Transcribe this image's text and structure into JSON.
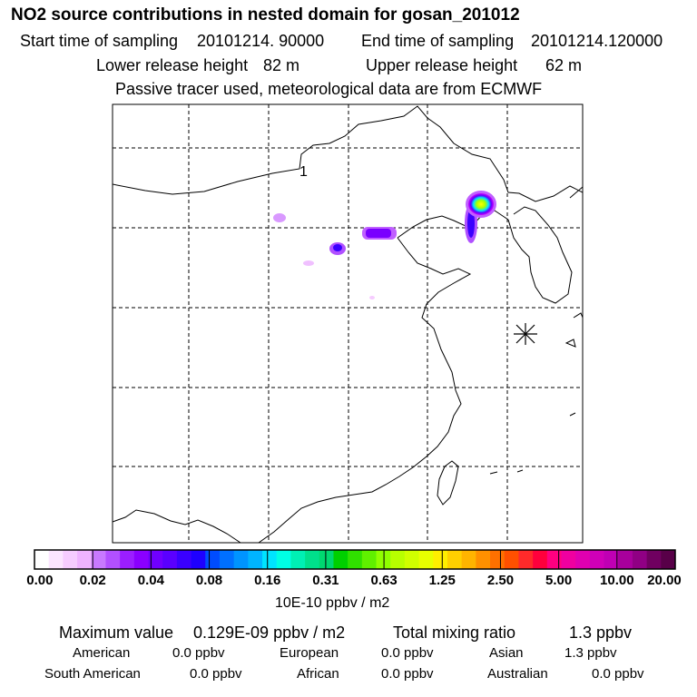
{
  "header": {
    "title": "NO2 source contributions in nested domain for gosan_201012",
    "start_label": "Start time of sampling",
    "start_value": "20101214. 90000",
    "end_label": "End time of sampling",
    "end_value": "20101214.120000",
    "lower_label": "Lower release height",
    "lower_value": "82 m",
    "upper_label": "Upper release height",
    "upper_value": "62 m",
    "note": "Passive tracer used, meteorological data are from ECMWF"
  },
  "map": {
    "marker_label": "1",
    "station_symbol": "asterisk"
  },
  "colorbar": {
    "ticks": [
      "0.00",
      "0.02",
      "0.04",
      "0.08",
      "0.16",
      "0.31",
      "0.63",
      "1.25",
      "2.50",
      "5.00",
      "10.00",
      "20.00"
    ],
    "unit": "10E-10 ppbv / m2",
    "colors": [
      "#ffffff",
      "#fbe5ff",
      "#f6ccff",
      "#efb3ff",
      "#c879ff",
      "#b250ff",
      "#9b1eff",
      "#8a00ff",
      "#7000ff",
      "#5a00ff",
      "#3a00ff",
      "#1e00ff",
      "#004cff",
      "#0070ff",
      "#0094ff",
      "#00b4ff",
      "#00e4ff",
      "#00ffe4",
      "#00f0b4",
      "#00e08c",
      "#00d870",
      "#00d000",
      "#30e000",
      "#60f000",
      "#90ff00",
      "#b8ff00",
      "#d0ff00",
      "#e8ff00",
      "#ffee00",
      "#ffd000",
      "#ffb400",
      "#ff9000",
      "#ff7000",
      "#ff5000",
      "#ff2a2a",
      "#ff003c",
      "#ff0080",
      "#f000a0",
      "#e000b0",
      "#d000b8",
      "#c000b4",
      "#a8009c",
      "#900084",
      "#700060",
      "#580048"
    ]
  },
  "footer": {
    "max_label": "Maximum value",
    "max_value": "0.129E-09 ppbv / m2",
    "total_label": "Total mixing ratio",
    "total_value": "1.3 ppbv",
    "regions": [
      {
        "name": "American",
        "value": "0.0 ppbv"
      },
      {
        "name": "European",
        "value": "0.0 ppbv"
      },
      {
        "name": "Asian",
        "value": "1.3 ppbv"
      },
      {
        "name": "South American",
        "value": "0.0 ppbv"
      },
      {
        "name": "African",
        "value": "0.0 ppbv"
      },
      {
        "name": "Australian",
        "value": "0.0 ppbv"
      }
    ]
  }
}
